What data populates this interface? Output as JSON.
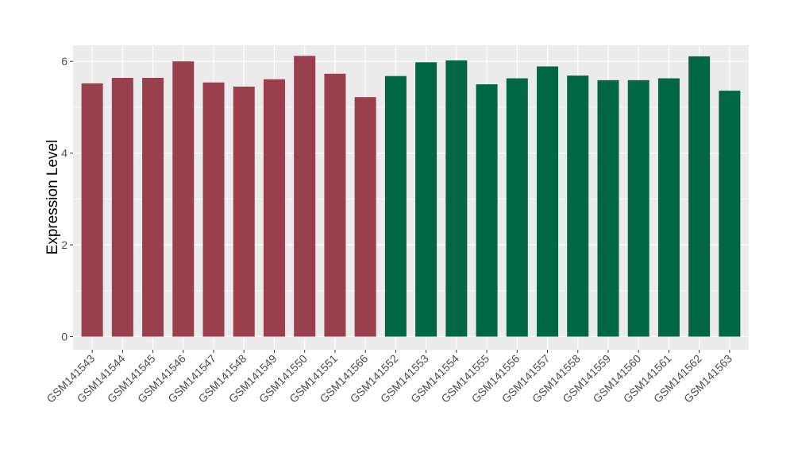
{
  "chart_data": {
    "type": "bar",
    "title": "",
    "xlabel": "",
    "ylabel": "Expression Level",
    "ylim": [
      0,
      6.35
    ],
    "yticks": [
      0,
      2,
      4,
      6
    ],
    "grid": true,
    "categories": [
      "GSM141543",
      "GSM141544",
      "GSM141545",
      "GSM141546",
      "GSM141547",
      "GSM141548",
      "GSM141549",
      "GSM141550",
      "GSM141551",
      "GSM141566",
      "GSM141552",
      "GSM141553",
      "GSM141554",
      "GSM141555",
      "GSM141556",
      "GSM141557",
      "GSM141558",
      "GSM141559",
      "GSM141560",
      "GSM141561",
      "GSM141562",
      "GSM141563"
    ],
    "values": [
      5.52,
      5.64,
      5.64,
      6.0,
      5.54,
      5.45,
      5.61,
      6.12,
      5.73,
      5.22,
      5.68,
      5.98,
      6.02,
      5.5,
      5.63,
      5.89,
      5.69,
      5.59,
      5.59,
      5.63,
      6.11,
      5.36
    ],
    "groups": [
      "a",
      "a",
      "a",
      "a",
      "a",
      "a",
      "a",
      "a",
      "a",
      "a",
      "b",
      "b",
      "b",
      "b",
      "b",
      "b",
      "b",
      "b",
      "b",
      "b",
      "b",
      "b"
    ],
    "colors": {
      "a": "#9a404d",
      "b": "#006644"
    },
    "panel_background": "#ebebeb",
    "gridline_color": "#ffffff"
  }
}
